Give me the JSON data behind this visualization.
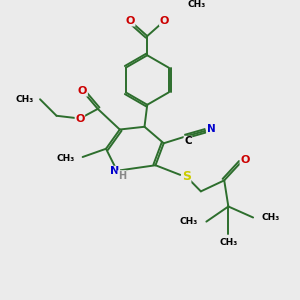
{
  "bg_color": "#ebebeb",
  "bond_color": "#2d6e2d",
  "bond_width": 1.4,
  "atom_colors": {
    "N": "#0000cc",
    "O": "#cc0000",
    "S": "#cccc00",
    "H": "#888888",
    "C": "#000000"
  },
  "figsize": [
    3.0,
    3.0
  ],
  "dpi": 100,
  "xlim": [
    0,
    10
  ],
  "ylim": [
    0,
    10
  ]
}
